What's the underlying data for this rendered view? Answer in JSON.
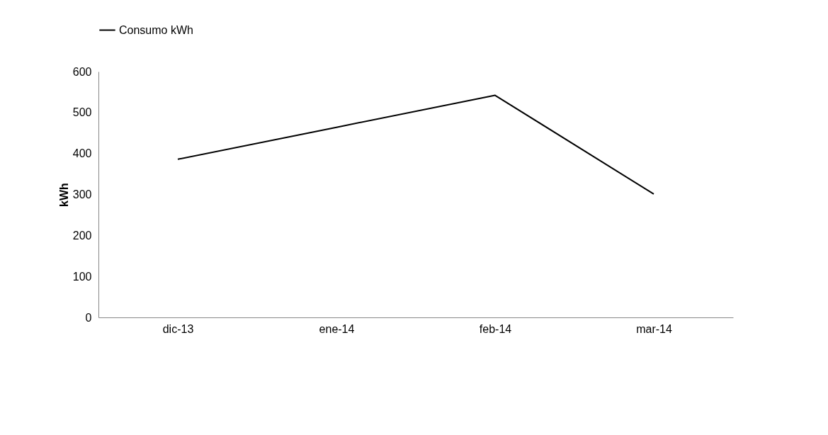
{
  "chart_data": {
    "type": "line",
    "ylabel": "kWh",
    "categories": [
      "dic-13",
      "ene-14",
      "feb-14",
      "mar-14"
    ],
    "series": [
      {
        "name": "Consumo kWh",
        "color": "#000000",
        "values": [
          386,
          464,
          542,
          301
        ]
      }
    ],
    "ylim": [
      0,
      600
    ],
    "yticks": [
      0,
      100,
      200,
      300,
      400,
      500,
      600
    ],
    "grid": false,
    "legend": "top",
    "marker": "none",
    "line_style": "solid"
  }
}
